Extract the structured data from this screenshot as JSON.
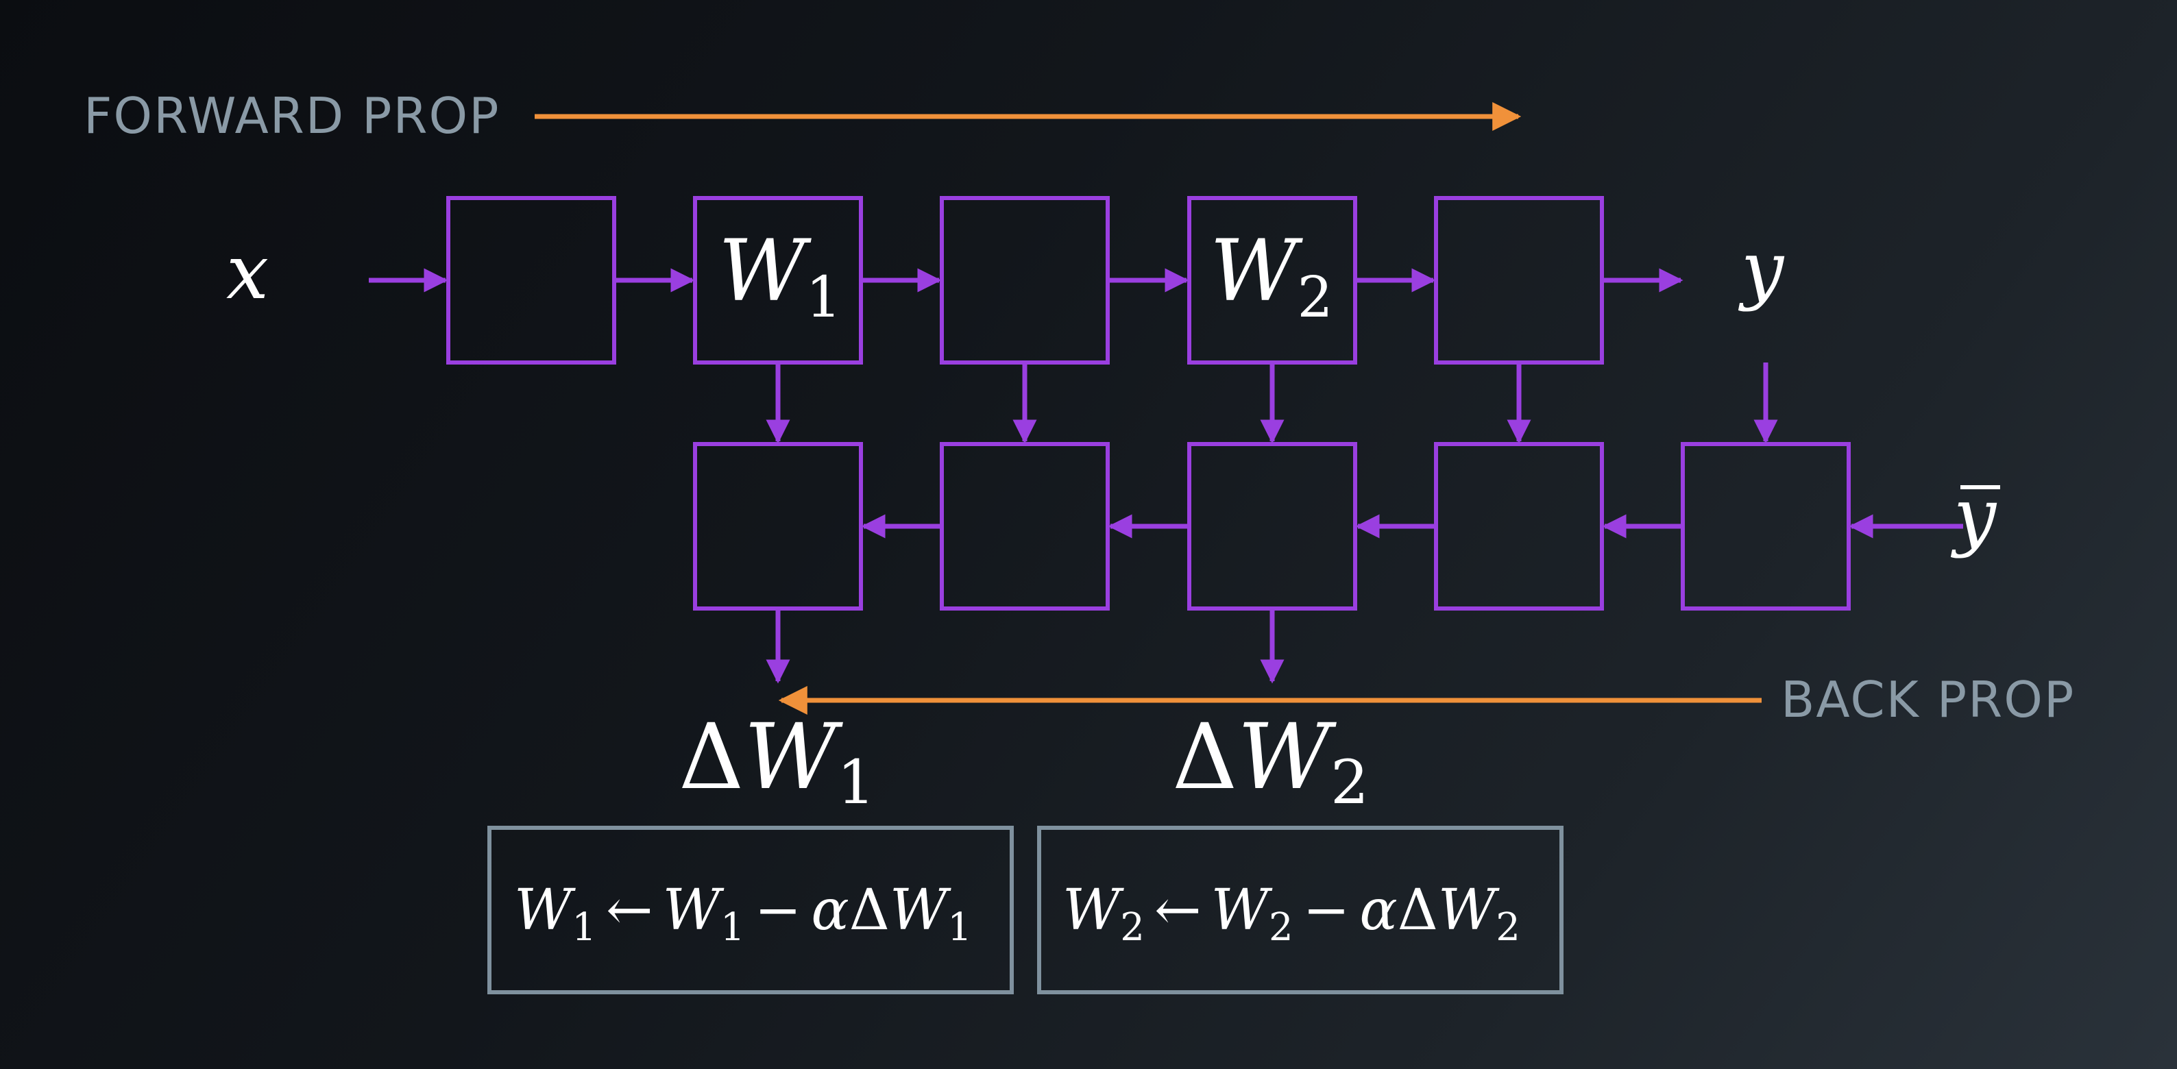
{
  "labels": {
    "forward_prop": "FORWARD PROP",
    "back_prop": "BACK PROP"
  },
  "math": {
    "x": "x",
    "y": "y",
    "y_bar": "y",
    "w": "W",
    "sub1": "1",
    "sub2": "2",
    "delta": "Δ",
    "arrow_left": "←",
    "minus": "−",
    "alpha": "α"
  },
  "colors": {
    "block": "#9a3fe0",
    "prop_arrow": "#f0913a",
    "update_box": "#7f919e",
    "label": "#8a9aa6",
    "math": "#ffffff"
  }
}
